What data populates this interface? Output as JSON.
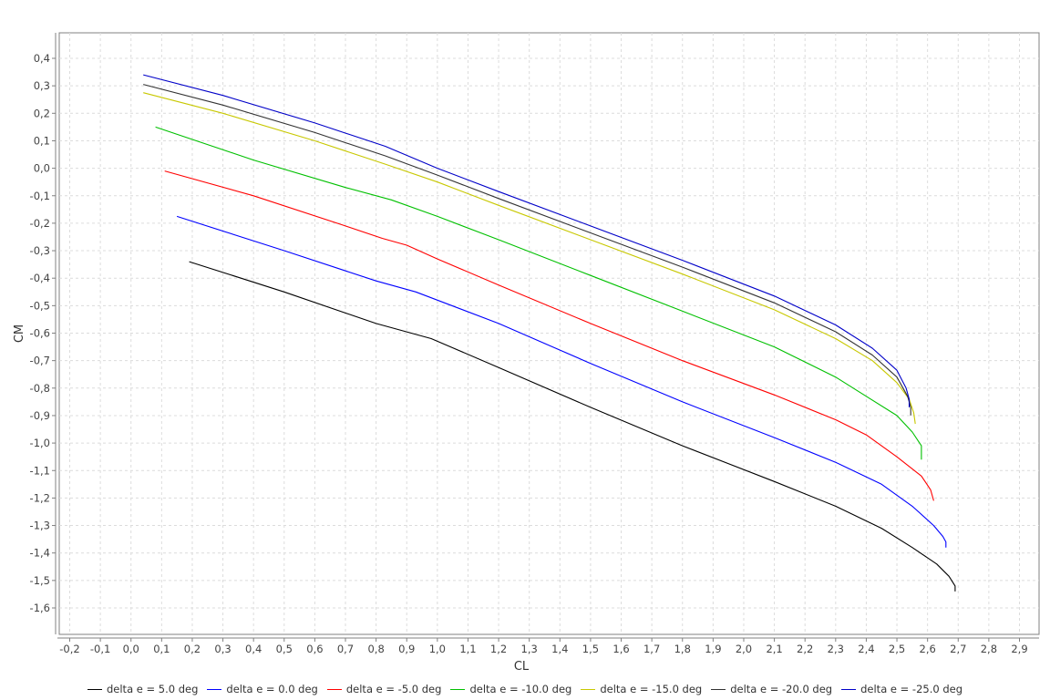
{
  "chart_data": {
    "type": "line",
    "xlabel": "CL",
    "ylabel": "CM",
    "xlim": [
      -0.2,
      2.9
    ],
    "ylim": [
      -1.6,
      0.4
    ],
    "grid": true,
    "legend_placement": "bottom",
    "x_ticks": [
      "-0,2",
      "-0,1",
      "0,0",
      "0,1",
      "0,2",
      "0,3",
      "0,4",
      "0,5",
      "0,6",
      "0,7",
      "0,8",
      "0,9",
      "1,0",
      "1,1",
      "1,2",
      "1,3",
      "1,4",
      "1,5",
      "1,6",
      "1,7",
      "1,8",
      "1,9",
      "2,0",
      "2,1",
      "2,2",
      "2,3",
      "2,4",
      "2,5",
      "2,6",
      "2,7",
      "2,8",
      "2,9"
    ],
    "y_ticks": [
      "0,4",
      "0,3",
      "0,2",
      "0,1",
      "0,0",
      "-0,1",
      "-0,2",
      "-0,3",
      "-0,4",
      "-0,5",
      "-0,6",
      "-0,7",
      "-0,8",
      "-0,9",
      "-1,0",
      "-1,1",
      "-1,2",
      "-1,3",
      "-1,4",
      "-1,5",
      "-1,6"
    ],
    "series": [
      {
        "name": "delta e = 5.0 deg",
        "color": "#000000",
        "x": [
          0.19,
          0.5,
          0.8,
          0.98,
          1.2,
          1.5,
          1.8,
          2.1,
          2.3,
          2.45,
          2.55,
          2.63,
          2.67,
          2.69,
          2.69
        ],
        "y": [
          -0.34,
          -0.45,
          -0.565,
          -0.62,
          -0.725,
          -0.87,
          -1.01,
          -1.14,
          -1.23,
          -1.31,
          -1.38,
          -1.44,
          -1.485,
          -1.52,
          -1.54
        ]
      },
      {
        "name": "delta e = 0.0 deg",
        "color": "#0000ff",
        "x": [
          0.15,
          0.5,
          0.8,
          0.93,
          1.2,
          1.5,
          1.8,
          2.1,
          2.3,
          2.45,
          2.55,
          2.62,
          2.65,
          2.66,
          2.66
        ],
        "y": [
          -0.175,
          -0.3,
          -0.41,
          -0.45,
          -0.565,
          -0.71,
          -0.85,
          -0.98,
          -1.07,
          -1.15,
          -1.23,
          -1.3,
          -1.34,
          -1.36,
          -1.38
        ]
      },
      {
        "name": "delta e = -5.0 deg",
        "color": "#ff0000",
        "x": [
          0.11,
          0.4,
          0.7,
          0.82,
          0.9,
          1.0,
          1.2,
          1.5,
          1.8,
          2.1,
          2.3,
          2.4,
          2.5,
          2.58,
          2.61,
          2.62
        ],
        "y": [
          -0.01,
          -0.1,
          -0.21,
          -0.255,
          -0.28,
          -0.33,
          -0.425,
          -0.565,
          -0.7,
          -0.825,
          -0.915,
          -0.97,
          -1.05,
          -1.12,
          -1.17,
          -1.21
        ]
      },
      {
        "name": "delta e = -10.0 deg",
        "color": "#00c000",
        "x": [
          0.08,
          0.4,
          0.7,
          0.85,
          1.0,
          1.2,
          1.5,
          1.8,
          2.1,
          2.3,
          2.4,
          2.5,
          2.55,
          2.58,
          2.58
        ],
        "y": [
          0.15,
          0.03,
          -0.07,
          -0.115,
          -0.175,
          -0.26,
          -0.39,
          -0.52,
          -0.65,
          -0.76,
          -0.83,
          -0.9,
          -0.96,
          -1.01,
          -1.06
        ]
      },
      {
        "name": "delta e = -15.0 deg",
        "color": "#c8c800",
        "x": [
          0.04,
          0.3,
          0.6,
          0.83,
          1.0,
          1.2,
          1.5,
          1.8,
          2.1,
          2.3,
          2.42,
          2.5,
          2.54,
          2.555,
          2.56
        ],
        "y": [
          0.275,
          0.2,
          0.1,
          0.015,
          -0.05,
          -0.135,
          -0.26,
          -0.385,
          -0.515,
          -0.62,
          -0.7,
          -0.78,
          -0.84,
          -0.89,
          -0.93
        ]
      },
      {
        "name": "delta e = -20.0 deg",
        "color": "#333333",
        "x": [
          0.04,
          0.3,
          0.6,
          0.83,
          1.0,
          1.2,
          1.5,
          1.8,
          2.1,
          2.3,
          2.42,
          2.5,
          2.535,
          2.545,
          2.545
        ],
        "y": [
          0.305,
          0.23,
          0.13,
          0.045,
          -0.025,
          -0.11,
          -0.235,
          -0.36,
          -0.49,
          -0.595,
          -0.68,
          -0.76,
          -0.83,
          -0.87,
          -0.9
        ]
      },
      {
        "name": "delta e = -25.0 deg",
        "color": "#0000c8",
        "x": [
          0.04,
          0.3,
          0.6,
          0.83,
          1.0,
          1.2,
          1.5,
          1.8,
          2.1,
          2.3,
          2.42,
          2.5,
          2.53,
          2.54,
          2.54
        ],
        "y": [
          0.34,
          0.265,
          0.165,
          0.08,
          0.0,
          -0.085,
          -0.21,
          -0.335,
          -0.465,
          -0.57,
          -0.655,
          -0.735,
          -0.8,
          -0.84,
          -0.87
        ]
      }
    ]
  }
}
